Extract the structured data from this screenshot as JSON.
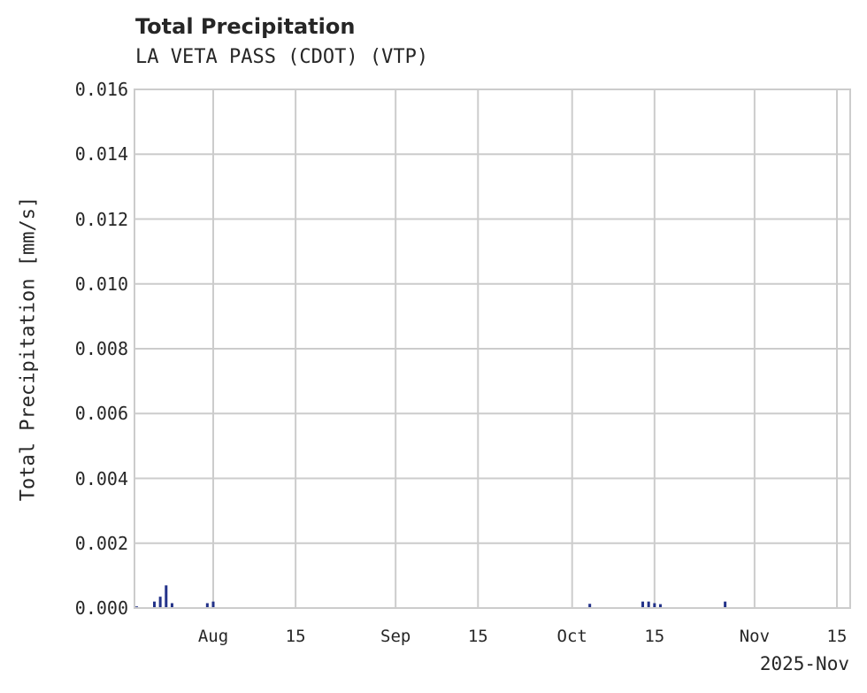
{
  "header": {
    "title": "Total Precipitation",
    "subtitle": "LA VETA PASS (CDOT) (VTP)"
  },
  "axes": {
    "ylabel": "Total Precipitation [mm/s]",
    "yticks": [
      "0.000",
      "0.002",
      "0.004",
      "0.006",
      "0.008",
      "0.010",
      "0.012",
      "0.014",
      "0.016"
    ],
    "xticks": [
      "Aug",
      "15",
      "Sep",
      "15",
      "Oct",
      "15",
      "Nov",
      "15"
    ],
    "x_offset_label": "2025-Nov"
  },
  "colors": {
    "bar": "#233289",
    "grid": "#cccccc",
    "frame": "#cccccc"
  },
  "chart_data": {
    "type": "bar",
    "title": "Total Precipitation",
    "subtitle": "LA VETA PASS (CDOT) (VTP)",
    "xlabel": "",
    "ylabel": "Total Precipitation [mm/s]",
    "ylim": [
      0,
      0.016
    ],
    "xlim": [
      "2025-07-18",
      "2025-11-17"
    ],
    "grid": true,
    "x": [
      "2025-07-19",
      "2025-07-22",
      "2025-07-23",
      "2025-07-24",
      "2025-07-25",
      "2025-07-31",
      "2025-08-01",
      "2025-10-04",
      "2025-10-13",
      "2025-10-14",
      "2025-10-15",
      "2025-10-16",
      "2025-10-27"
    ],
    "values": [
      5e-05,
      0.0002,
      0.00035,
      0.0007,
      0.00015,
      0.00015,
      0.0002,
      0.00013,
      0.0002,
      0.0002,
      0.00015,
      0.00012,
      0.0002
    ]
  }
}
